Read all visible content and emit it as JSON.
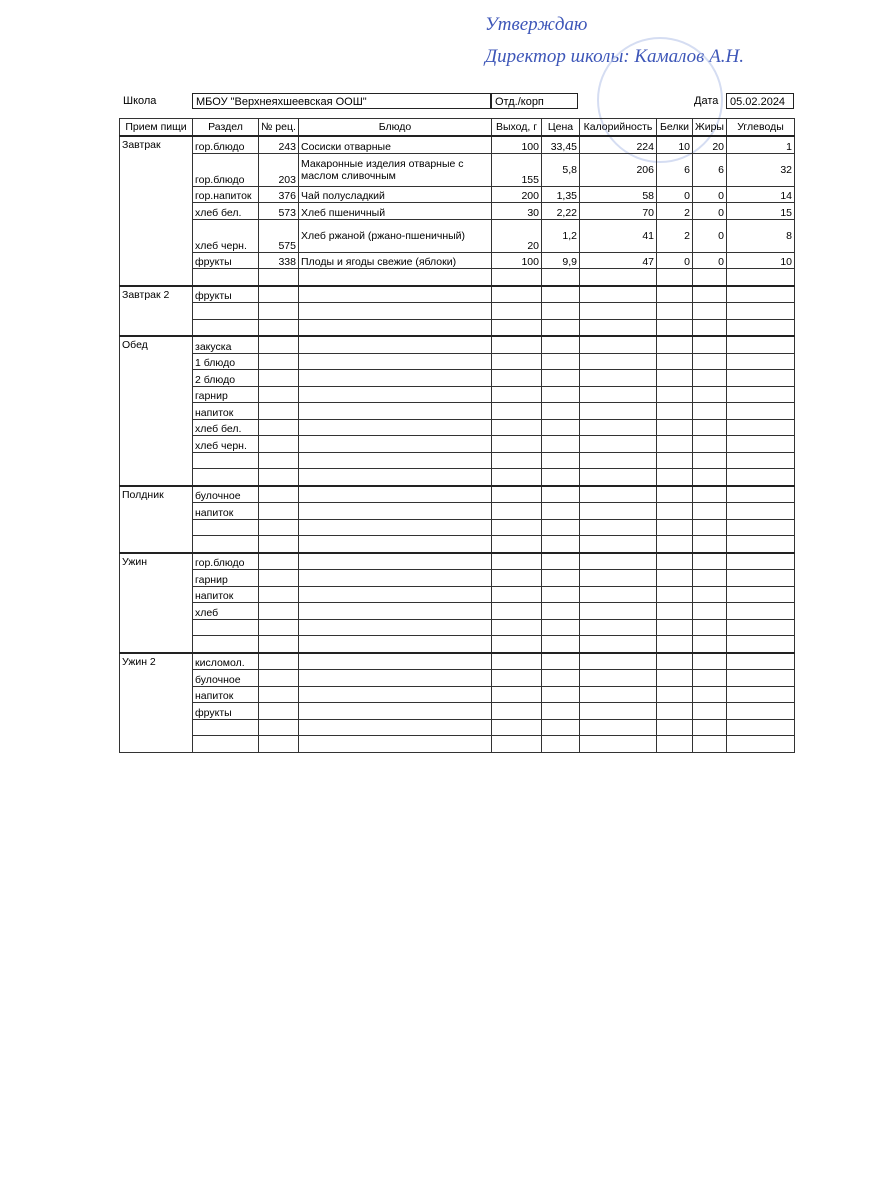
{
  "approval": {
    "line1": "Утверждаю",
    "line2": "Директор школы: Камалов А.Н."
  },
  "header": {
    "school_label": "Школа",
    "school": "МБОУ \"Верхнеяхшеевская ООШ\"",
    "branch_label": "Отд./корп",
    "date_label": "Дата",
    "date": "05.02.2024"
  },
  "table": {
    "columns": [
      "Прием пищи",
      "Раздел",
      "№ рец.",
      "Блюдо",
      "Выход, г",
      "Цена",
      "Калорийность",
      "Белки",
      "Жиры",
      "Углеводы"
    ],
    "meals": [
      {
        "name": "Завтрак",
        "rows": [
          [
            "гор.блюдо",
            "243",
            "Сосиски отварные",
            "100",
            "33,45",
            "224",
            "10",
            "20",
            "1"
          ],
          [
            "гор.блюдо",
            "203",
            "Макаронные изделия отварные с маслом сливочным",
            "155",
            "5,8",
            "206",
            "6",
            "6",
            "32"
          ],
          [
            "гор.напиток",
            "376",
            "Чай полусладкий",
            "200",
            "1,35",
            "58",
            "0",
            "0",
            "14"
          ],
          [
            "хлеб бел.",
            "573",
            "Хлеб пшеничный",
            "30",
            "2,22",
            "70",
            "2",
            "0",
            "15"
          ],
          [
            "хлеб черн.",
            "575",
            "Хлеб ржаной (ржано-пшеничный)",
            "20",
            "1,2",
            "41",
            "2",
            "0",
            "8"
          ],
          [
            "фрукты",
            "338",
            "Плоды и ягоды свежие (яблоки)",
            "100",
            "9,9",
            "47",
            "0",
            "0",
            "10"
          ],
          []
        ]
      },
      {
        "name": "Завтрак 2",
        "rows": [
          [
            "фрукты"
          ],
          [],
          []
        ]
      },
      {
        "name": "Обед",
        "rows": [
          [
            "закуска"
          ],
          [
            "1 блюдо"
          ],
          [
            "2 блюдо"
          ],
          [
            "гарнир"
          ],
          [
            "напиток"
          ],
          [
            "хлеб бел."
          ],
          [
            "хлеб черн."
          ],
          [],
          []
        ]
      },
      {
        "name": "Полдник",
        "rows": [
          [
            "булочное"
          ],
          [
            "напиток"
          ],
          [],
          []
        ]
      },
      {
        "name": "Ужин",
        "rows": [
          [
            "гор.блюдо"
          ],
          [
            "гарнир"
          ],
          [
            "напиток"
          ],
          [
            "хлеб"
          ],
          [],
          []
        ]
      },
      {
        "name": "Ужин 2",
        "rows": [
          [
            "кисломол."
          ],
          [
            "булочное"
          ],
          [
            "напиток"
          ],
          [
            "фрукты"
          ],
          [],
          []
        ]
      }
    ]
  }
}
